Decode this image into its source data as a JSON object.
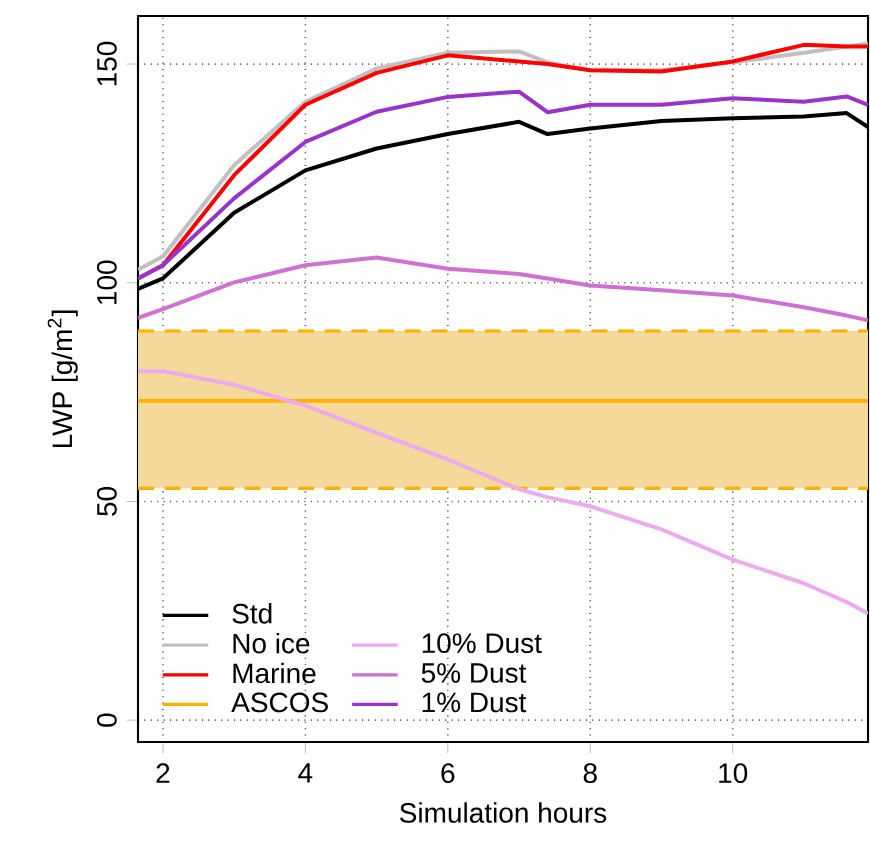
{
  "chart_data": {
    "type": "line",
    "xlabel": "Simulation hours",
    "ylabel": "LWP [g/m$^{2}$]",
    "xlim": [
      1.65,
      11.9
    ],
    "ylim": [
      -5,
      161
    ],
    "xticks": [
      2,
      4,
      6,
      8,
      10
    ],
    "yticks": [
      0,
      50,
      100,
      150
    ],
    "grid": true,
    "legend": "bottom left",
    "bands": [
      {
        "axis": "y",
        "from": 53,
        "to": 89,
        "color": "#f5d99a"
      }
    ],
    "ref_lines": [
      {
        "axis": "y",
        "value": 53,
        "color": "#ffb000",
        "line_style": "dashed"
      },
      {
        "axis": "y",
        "value": 89,
        "color": "#ffb000",
        "line_style": "dashed"
      }
    ],
    "x": [
      1.65,
      2,
      3,
      4,
      5,
      6,
      7,
      7.4,
      8,
      9,
      10,
      11,
      11.6,
      11.9
    ],
    "series": [
      {
        "name": "Std",
        "color": "#000000",
        "values": [
          98.6,
          101,
          116,
          125.7,
          130.7,
          134,
          136.8,
          134,
          135.3,
          137,
          137.6,
          138,
          138.8,
          135.6
        ]
      },
      {
        "name": "No ice",
        "color": "#c0c0c0",
        "values": [
          103,
          106,
          126.9,
          141.4,
          149,
          152.6,
          152.9,
          150.4,
          148.6,
          148.6,
          150.4,
          152.6,
          154,
          154.7
        ]
      },
      {
        "name": "Marine",
        "color": "#ff0000",
        "values": [
          101,
          104,
          124.6,
          140.7,
          148,
          152,
          150.6,
          150,
          148.6,
          148.3,
          150.6,
          154.4,
          154,
          154
        ]
      },
      {
        "name": "ASCOS",
        "color": "#ffb000",
        "x": [
          1.65,
          11.9
        ],
        "values": [
          73,
          73
        ]
      },
      {
        "name": "10% Dust",
        "color": "#eeaaee",
        "values": [
          79.8,
          79.8,
          76.7,
          71.9,
          65.7,
          59.6,
          52.8,
          51,
          48.9,
          43.6,
          36.7,
          31.3,
          27,
          24.4
        ]
      },
      {
        "name": "5% Dust",
        "color": "#d070d0",
        "values": [
          92,
          94,
          100.1,
          104,
          105.8,
          103.2,
          102,
          101,
          99.4,
          98.3,
          97.1,
          94.4,
          92.5,
          91.4
        ]
      },
      {
        "name": "1% Dust",
        "color": "#9933cc",
        "values": [
          101,
          104,
          119.3,
          132.2,
          139.1,
          142.5,
          143.7,
          139,
          140.7,
          140.7,
          142.2,
          141.4,
          142.6,
          140.7
        ]
      }
    ]
  }
}
